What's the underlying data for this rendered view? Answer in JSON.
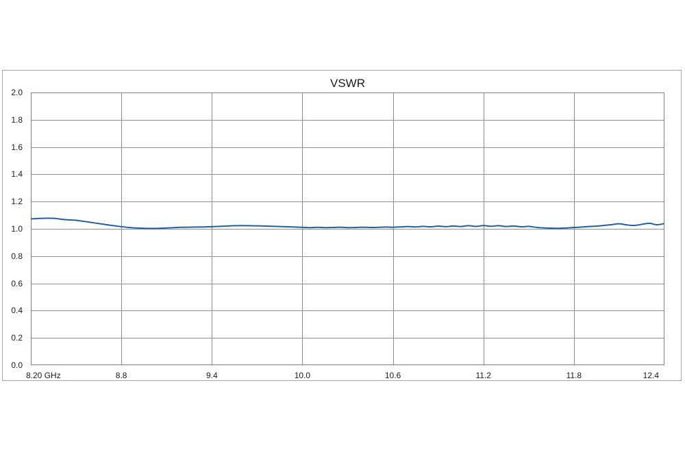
{
  "colors": {
    "background": "#ffffff",
    "frame_border": "#a6a6a6",
    "plot_border": "#7f7f7f",
    "gridline": "#8e8e8e",
    "text": "#1a1a1a",
    "series_blue": "#1e5eae"
  },
  "chart_data": {
    "type": "line",
    "title": "VSWR",
    "xlabel": "",
    "ylabel": "",
    "xlim": [
      8.2,
      12.4
    ],
    "ylim": [
      0.0,
      2.0
    ],
    "grid": true,
    "legend_position": "none",
    "x_ticks": [
      {
        "v": 8.2,
        "label": "8.20 GHz"
      },
      {
        "v": 8.8,
        "label": "8.8"
      },
      {
        "v": 9.4,
        "label": "9.4"
      },
      {
        "v": 10.0,
        "label": "10.0"
      },
      {
        "v": 10.6,
        "label": "10.6"
      },
      {
        "v": 11.2,
        "label": "11.2"
      },
      {
        "v": 11.8,
        "label": "11.8"
      },
      {
        "v": 12.4,
        "label": "12.4"
      }
    ],
    "y_ticks": [
      {
        "v": 0.0,
        "label": "0.0"
      },
      {
        "v": 0.2,
        "label": "0.2"
      },
      {
        "v": 0.4,
        "label": "0.4"
      },
      {
        "v": 0.6,
        "label": "0.6"
      },
      {
        "v": 0.8,
        "label": "0.8"
      },
      {
        "v": 1.0,
        "label": "1.0"
      },
      {
        "v": 1.2,
        "label": "1.2"
      },
      {
        "v": 1.4,
        "label": "1.4"
      },
      {
        "v": 1.6,
        "label": "1.6"
      },
      {
        "v": 1.8,
        "label": "1.8"
      },
      {
        "v": 2.0,
        "label": "2.0"
      }
    ],
    "series": [
      {
        "name": "VSWR",
        "color": "#1e5eae",
        "x": [
          8.2,
          8.25,
          8.3,
          8.35,
          8.4,
          8.45,
          8.5,
          8.55,
          8.6,
          8.65,
          8.7,
          8.75,
          8.8,
          8.85,
          8.9,
          8.95,
          9.0,
          9.05,
          9.1,
          9.15,
          9.2,
          9.25,
          9.3,
          9.35,
          9.4,
          9.45,
          9.5,
          9.55,
          9.6,
          9.65,
          9.7,
          9.75,
          9.8,
          9.85,
          9.9,
          9.95,
          10.0,
          10.05,
          10.1,
          10.15,
          10.2,
          10.25,
          10.3,
          10.35,
          10.4,
          10.45,
          10.5,
          10.55,
          10.6,
          10.65,
          10.7,
          10.75,
          10.8,
          10.85,
          10.9,
          10.95,
          11.0,
          11.05,
          11.1,
          11.15,
          11.2,
          11.25,
          11.3,
          11.35,
          11.4,
          11.45,
          11.5,
          11.55,
          11.6,
          11.65,
          11.7,
          11.75,
          11.8,
          11.85,
          11.9,
          11.95,
          12.0,
          12.05,
          12.1,
          12.15,
          12.2,
          12.25,
          12.3,
          12.35,
          12.4
        ],
        "y": [
          1.073,
          1.076,
          1.078,
          1.077,
          1.071,
          1.066,
          1.063,
          1.055,
          1.047,
          1.039,
          1.031,
          1.023,
          1.016,
          1.01,
          1.006,
          1.004,
          1.003,
          1.004,
          1.006,
          1.009,
          1.011,
          1.012,
          1.013,
          1.014,
          1.016,
          1.018,
          1.021,
          1.023,
          1.024,
          1.023,
          1.022,
          1.021,
          1.019,
          1.017,
          1.015,
          1.013,
          1.011,
          1.009,
          1.011,
          1.009,
          1.01,
          1.012,
          1.009,
          1.01,
          1.012,
          1.01,
          1.011,
          1.013,
          1.012,
          1.014,
          1.017,
          1.014,
          1.018,
          1.015,
          1.02,
          1.016,
          1.021,
          1.017,
          1.023,
          1.018,
          1.024,
          1.019,
          1.023,
          1.017,
          1.021,
          1.015,
          1.018,
          1.011,
          1.007,
          1.005,
          1.004,
          1.006,
          1.01,
          1.013,
          1.017,
          1.02,
          1.025,
          1.031,
          1.037,
          1.029,
          1.025,
          1.033,
          1.041,
          1.03,
          1.039
        ]
      }
    ]
  }
}
